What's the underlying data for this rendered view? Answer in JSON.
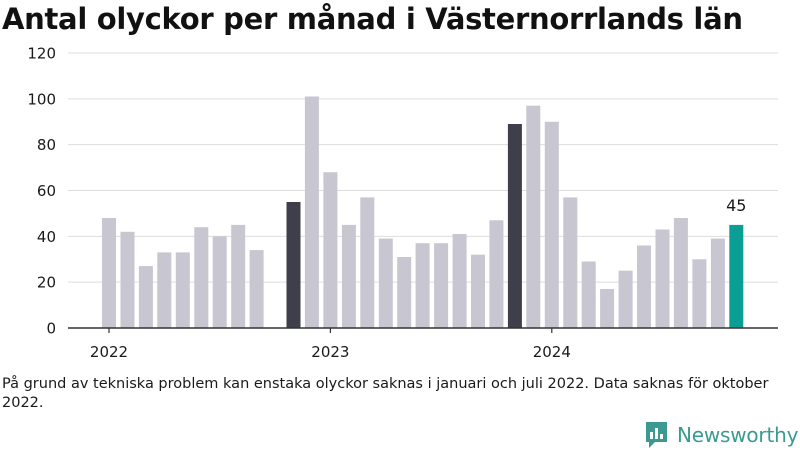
{
  "title": "Antal olyckor per månad i Västernorrlands län",
  "note": "På grund av tekniska problem kan enstaka olyckor saknas i januari och juli 2022. Data saknas för oktober 2022.",
  "brand": {
    "name": "Newsworthy"
  },
  "colors": {
    "bar_default": "#c8c6d1",
    "bar_highlight": "#3f3e4b",
    "bar_latest": "#0a9e95",
    "grid": "#dddddd",
    "axis": "#333333",
    "text": "#1a1a1a",
    "brand": "#3a9a92"
  },
  "chart_data": {
    "type": "bar",
    "title": "Antal olyckor per månad i Västernorrlands län",
    "ylim": [
      0,
      120
    ],
    "yticks": [
      0,
      20,
      40,
      60,
      80,
      100,
      120
    ],
    "grid": true,
    "x_tick_labels": [
      "2022",
      "2023",
      "2024"
    ],
    "value_label": "45",
    "series": [
      {
        "values": [
          48,
          42,
          27,
          33,
          33,
          44,
          40,
          45,
          34,
          null,
          55,
          101,
          68,
          45,
          57,
          39,
          31,
          37,
          37,
          41,
          32,
          47,
          89,
          97,
          90,
          57,
          29,
          17,
          25,
          36,
          43,
          48,
          30,
          39,
          45
        ],
        "bar_style": [
          "default",
          "default",
          "default",
          "default",
          "default",
          "default",
          "default",
          "default",
          "default",
          "default",
          "highlight",
          "default",
          "default",
          "default",
          "default",
          "default",
          "default",
          "default",
          "default",
          "default",
          "default",
          "default",
          "highlight",
          "default",
          "default",
          "default",
          "default",
          "default",
          "default",
          "default",
          "default",
          "default",
          "default",
          "default",
          "latest"
        ]
      }
    ]
  }
}
